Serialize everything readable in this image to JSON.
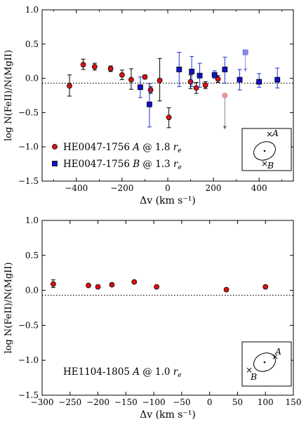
{
  "chart_data": [
    {
      "type": "scatter",
      "xlabel": "Δv (km s⁻¹)",
      "ylabel": "log N(FeII)/N(MgII)",
      "xlim": [
        -550,
        550
      ],
      "ylim": [
        -1.5,
        1.0
      ],
      "xticks": [
        -400,
        -200,
        0,
        200,
        400
      ],
      "xtick_labels": [
        "−400",
        "−200",
        "0",
        "200",
        "400"
      ],
      "yticks": [
        -1.5,
        -1.0,
        -0.5,
        0.0,
        0.5,
        1.0
      ],
      "ytick_labels": [
        "−1.5",
        "−1.0",
        "−0.5",
        "0.0",
        "0.5",
        "1.0"
      ],
      "grid": false,
      "reference_line": -0.07,
      "legend_position": "lower-left",
      "series": [
        {
          "name": "HE0047-1756 A @ 1.8 re",
          "marker": "circle",
          "color": "#dd1111",
          "points": [
            {
              "x": -430,
              "y": -0.11,
              "yerr": [
                0.15,
                0.16
              ]
            },
            {
              "x": -370,
              "y": 0.2,
              "yerr": [
                0.07,
                0.08
              ]
            },
            {
              "x": -320,
              "y": 0.17,
              "yerr": [
                0.05,
                0.05
              ]
            },
            {
              "x": -250,
              "y": 0.14,
              "yerr": [
                0.04,
                0.04
              ]
            },
            {
              "x": -200,
              "y": 0.05,
              "yerr": [
                0.07,
                0.07
              ]
            },
            {
              "x": -160,
              "y": -0.02,
              "yerr": [
                0.14,
                0.16
              ]
            },
            {
              "x": -100,
              "y": 0.02,
              "yerr": [
                0.03,
                0.03
              ]
            },
            {
              "x": -75,
              "y": -0.17,
              "yerr": [
                0.05,
                0.05
              ]
            },
            {
              "x": -35,
              "y": -0.03,
              "yerr": [
                0.3,
                0.32
              ]
            },
            {
              "x": 5,
              "y": -0.57,
              "yerr": [
                0.15,
                0.14
              ]
            },
            {
              "x": 100,
              "y": -0.05,
              "yerr": [
                0.1,
                0.1
              ]
            },
            {
              "x": 125,
              "y": -0.14,
              "yerr": [
                0.08,
                0.08
              ]
            },
            {
              "x": 165,
              "y": -0.1,
              "yerr": [
                0.05,
                0.05
              ]
            },
            {
              "x": 220,
              "y": -0.01,
              "yerr": [
                0.05,
                0.05
              ]
            }
          ]
        },
        {
          "name": "HE0047-1756 B @ 1.3 re",
          "marker": "square",
          "color": "#1111cc",
          "points": [
            {
              "x": -120,
              "y": -0.13,
              "yerr": [
                0.15,
                0.15
              ]
            },
            {
              "x": -80,
              "y": -0.38,
              "yerr": [
                0.33,
                0.3
              ]
            },
            {
              "x": 50,
              "y": 0.13,
              "yerr": [
                0.25,
                0.25
              ]
            },
            {
              "x": 105,
              "y": 0.1,
              "yerr": [
                0.22,
                0.22
              ]
            },
            {
              "x": 140,
              "y": 0.04,
              "yerr": [
                0.17,
                0.18
              ]
            },
            {
              "x": 205,
              "y": 0.05,
              "yerr": [
                0.05,
                0.06
              ]
            },
            {
              "x": 250,
              "y": 0.13,
              "yerr": [
                0.2,
                0.18
              ]
            },
            {
              "x": 315,
              "y": -0.02,
              "yerr": [
                0.15,
                0.15
              ]
            },
            {
              "x": 400,
              "y": -0.05,
              "yerr": [
                0.08,
                0.12
              ]
            },
            {
              "x": 480,
              "y": -0.02,
              "yerr": [
                0.12,
                0.17
              ]
            }
          ]
        }
      ],
      "upper_limits": [
        {
          "x": 250,
          "y": -0.25,
          "marker": "circle",
          "color": "#ee9999",
          "arrow_to": -0.72
        },
        {
          "x": 340,
          "y": 0.38,
          "marker": "square",
          "color": "#8888ee",
          "arrow_to": 0.12
        }
      ],
      "inset": {
        "type": "galaxy-sketch",
        "labels": [
          "A",
          "B"
        ]
      }
    },
    {
      "type": "scatter",
      "xlabel": "Δv (km s⁻¹)",
      "ylabel": "log N(FeII)/N(MgII)",
      "xlim": [
        -300,
        150
      ],
      "ylim": [
        -1.5,
        1.0
      ],
      "xticks": [
        -300,
        -250,
        -200,
        -150,
        -100,
        -50,
        0,
        50,
        100,
        150
      ],
      "xtick_labels": [
        "−300",
        "−250",
        "−200",
        "−150",
        "−100",
        "−50",
        "0",
        "50",
        "100",
        "150"
      ],
      "yticks": [
        -1.5,
        -1.0,
        -0.5,
        0.0,
        0.5,
        1.0
      ],
      "ytick_labels": [
        "−1.5",
        "−1.0",
        "−0.5",
        "0.0",
        "0.5",
        "1.0"
      ],
      "grid": false,
      "reference_line": -0.07,
      "series": [
        {
          "name": "HE1104-1805 A @ 1.0 re",
          "marker": "circle",
          "color": "#dd1111",
          "points": [
            {
              "x": -280,
              "y": 0.09,
              "yerr": [
                0.05,
                0.06
              ]
            },
            {
              "x": -217,
              "y": 0.07,
              "yerr": [
                0.02,
                0.02
              ]
            },
            {
              "x": -200,
              "y": 0.05,
              "yerr": [
                0.02,
                0.02
              ]
            },
            {
              "x": -175,
              "y": 0.08,
              "yerr": [
                0.02,
                0.02
              ]
            },
            {
              "x": -135,
              "y": 0.12,
              "yerr": [
                0.02,
                0.02
              ]
            },
            {
              "x": -95,
              "y": 0.05,
              "yerr": [
                0.02,
                0.02
              ]
            },
            {
              "x": 30,
              "y": 0.01,
              "yerr": [
                0.02,
                0.02
              ]
            },
            {
              "x": 100,
              "y": 0.05,
              "yerr": [
                0.02,
                0.02
              ]
            }
          ]
        }
      ],
      "inset": {
        "type": "galaxy-sketch",
        "labels": [
          "A",
          "B"
        ]
      }
    }
  ]
}
